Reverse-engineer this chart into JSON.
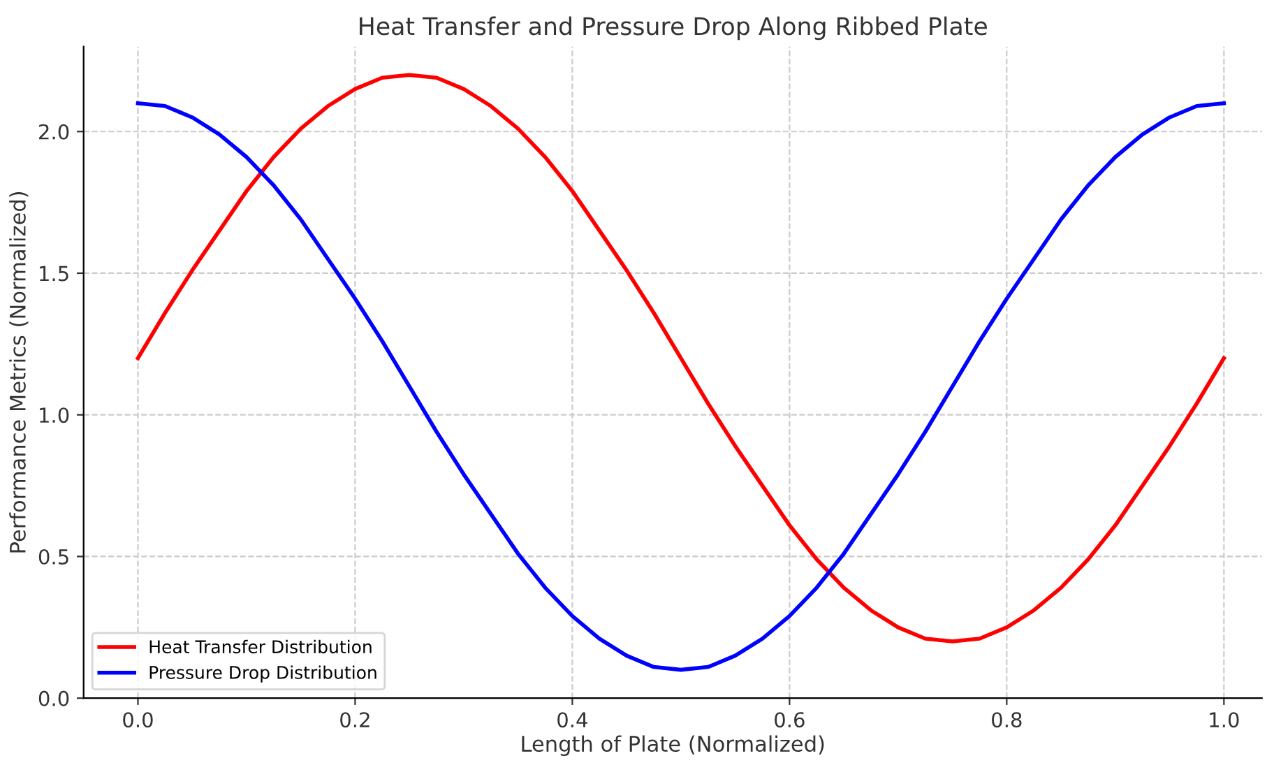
{
  "chart_data": {
    "type": "line",
    "title": "Heat Transfer and Pressure Drop Along Ribbed Plate",
    "xlabel": "Length of Plate (Normalized)",
    "ylabel": "Performance Metrics (Normalized)",
    "x": [
      0,
      0.025,
      0.05,
      0.075,
      0.1,
      0.125,
      0.15,
      0.175,
      0.2,
      0.225,
      0.25,
      0.275,
      0.3,
      0.325,
      0.35,
      0.375,
      0.4,
      0.425,
      0.45,
      0.475,
      0.5,
      0.525,
      0.55,
      0.575,
      0.6,
      0.625,
      0.65,
      0.675,
      0.7,
      0.725,
      0.75,
      0.775,
      0.8,
      0.825,
      0.85,
      0.875,
      0.9,
      0.925,
      0.95,
      0.975,
      1
    ],
    "series": [
      {
        "name": "Heat Transfer Distribution",
        "color": "#ff0000",
        "values": [
          1.2,
          1.36,
          1.51,
          1.65,
          1.79,
          1.91,
          2.01,
          2.09,
          2.15,
          2.19,
          2.2,
          2.19,
          2.15,
          2.09,
          2.01,
          1.91,
          1.79,
          1.65,
          1.51,
          1.36,
          1.2,
          1.04,
          0.89,
          0.75,
          0.61,
          0.49,
          0.39,
          0.31,
          0.25,
          0.21,
          0.2,
          0.21,
          0.25,
          0.31,
          0.39,
          0.49,
          0.61,
          0.75,
          0.89,
          1.04,
          1.2
        ]
      },
      {
        "name": "Pressure Drop Distribution",
        "color": "#0000ff",
        "values": [
          2.1,
          2.09,
          2.05,
          1.99,
          1.91,
          1.81,
          1.69,
          1.55,
          1.41,
          1.26,
          1.1,
          0.94,
          0.79,
          0.65,
          0.51,
          0.39,
          0.29,
          0.21,
          0.15,
          0.11,
          0.1,
          0.11,
          0.15,
          0.21,
          0.29,
          0.39,
          0.51,
          0.65,
          0.79,
          0.94,
          1.1,
          1.26,
          1.41,
          1.55,
          1.69,
          1.81,
          1.91,
          1.99,
          2.05,
          2.09,
          2.1
        ]
      }
    ],
    "xlim": [
      -0.05,
      1.035
    ],
    "ylim": [
      0,
      2.3
    ],
    "xticks": [
      {
        "value": 0,
        "label": "0.0"
      },
      {
        "value": 0.2,
        "label": "0.2"
      },
      {
        "value": 0.4,
        "label": "0.4"
      },
      {
        "value": 0.6,
        "label": "0.6"
      },
      {
        "value": 0.8,
        "label": "0.8"
      },
      {
        "value": 1,
        "label": "1.0"
      }
    ],
    "yticks": [
      {
        "value": 0,
        "label": "0.0"
      },
      {
        "value": 0.5,
        "label": "0.5"
      },
      {
        "value": 1,
        "label": "1.0"
      },
      {
        "value": 1.5,
        "label": "1.5"
      },
      {
        "value": 2,
        "label": "2.0"
      }
    ],
    "grid": true,
    "legend": "bottom left",
    "marker": "none",
    "line_style": "solid"
  }
}
